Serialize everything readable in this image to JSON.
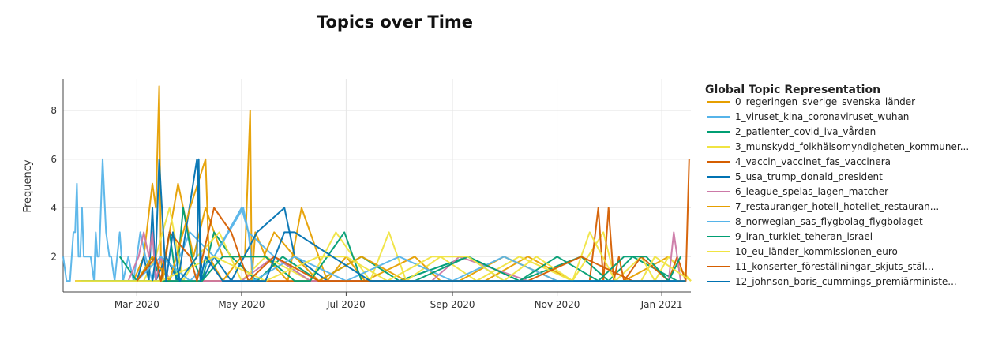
{
  "chart_data": {
    "type": "line",
    "title": "Topics over Time",
    "xlabel": "",
    "ylabel": "Frequency",
    "x_ticks": [
      "Mar 2020",
      "May 2020",
      "Jul 2020",
      "Sep 2020",
      "Nov 2020",
      "Jan 2021"
    ],
    "x_tick_dates": [
      "2020-03-01",
      "2020-05-01",
      "2020-07-01",
      "2020-09-01",
      "2020-11-01",
      "2021-01-01"
    ],
    "xlim": [
      "2020-01-18",
      "2021-01-18"
    ],
    "y_ticks": [
      2,
      4,
      6,
      8
    ],
    "ylim": [
      0.55,
      9.3
    ],
    "grid": true,
    "legend_title": "Global Topic Representation",
    "legend_position": "right",
    "series": [
      {
        "name": "0_regeringen_sverige_svenska_länder",
        "color": "#E69F00",
        "x": [
          "2020-01-27",
          "2020-02-10",
          "2020-02-20",
          "2020-02-28",
          "2020-03-05",
          "2020-03-10",
          "2020-03-12",
          "2020-03-14",
          "2020-03-15",
          "2020-03-16",
          "2020-03-20",
          "2020-03-25",
          "2020-04-03",
          "2020-04-10",
          "2020-04-20",
          "2020-05-03",
          "2020-05-06",
          "2020-05-07",
          "2020-05-09",
          "2020-05-15",
          "2020-05-28",
          "2020-06-05",
          "2020-06-20",
          "2020-07-01",
          "2020-07-12",
          "2020-08-10",
          "2020-08-25",
          "2020-09-20",
          "2020-10-15",
          "2020-11-10",
          "2020-12-10",
          "2021-01-05",
          "2021-01-18"
        ],
        "y": [
          1,
          1,
          1,
          1,
          2,
          5,
          4,
          9,
          2,
          1,
          3,
          5,
          2,
          4,
          2,
          2,
          8,
          1,
          3,
          2,
          1,
          4,
          1,
          2,
          1,
          2,
          1,
          1,
          2,
          1,
          1,
          2,
          1
        ]
      },
      {
        "name": "1_viruset_kina_coronaviruset_wuhan",
        "color": "#56B4E9",
        "x": [
          "2020-01-18",
          "2020-01-20",
          "2020-01-22",
          "2020-01-24",
          "2020-01-25",
          "2020-01-26",
          "2020-01-27",
          "2020-01-28",
          "2020-01-29",
          "2020-01-30",
          "2020-02-01",
          "2020-02-03",
          "2020-02-05",
          "2020-02-06",
          "2020-02-07",
          "2020-02-08",
          "2020-02-10",
          "2020-02-12",
          "2020-02-14",
          "2020-02-15",
          "2020-02-17",
          "2020-02-20",
          "2020-02-22",
          "2020-02-25",
          "2020-02-28",
          "2020-03-03",
          "2020-03-06",
          "2020-03-10",
          "2020-03-15",
          "2020-03-20",
          "2020-04-01",
          "2020-04-15",
          "2020-05-01",
          "2020-05-05",
          "2020-05-20",
          "2020-06-10",
          "2020-07-05",
          "2020-08-01",
          "2020-09-10",
          "2020-10-01",
          "2020-11-01",
          "2020-12-01",
          "2021-01-10"
        ],
        "y": [
          2,
          1,
          1,
          3,
          3,
          5,
          2,
          2,
          4,
          2,
          2,
          2,
          1,
          3,
          2,
          2,
          6,
          3,
          2,
          2,
          1,
          3,
          1,
          2,
          1,
          3,
          2,
          1,
          2,
          1,
          3,
          2,
          4,
          3,
          2,
          1,
          1,
          1,
          2,
          1,
          1,
          1,
          1
        ]
      },
      {
        "name": "2_patienter_covid_iva_vården",
        "color": "#009E73",
        "x": [
          "2020-02-20",
          "2020-03-01",
          "2020-03-10",
          "2020-03-15",
          "2020-03-20",
          "2020-03-24",
          "2020-03-28",
          "2020-04-02",
          "2020-04-08",
          "2020-04-15",
          "2020-04-25",
          "2020-05-10",
          "2020-05-25",
          "2020-06-15",
          "2020-07-10",
          "2020-08-01",
          "2020-09-10",
          "2020-10-10",
          "2020-11-15",
          "2020-12-01",
          "2020-12-15",
          "2021-01-10"
        ],
        "y": [
          2,
          1,
          2,
          1,
          3,
          1,
          4,
          2,
          1,
          3,
          2,
          1,
          2,
          1,
          2,
          1,
          2,
          1,
          2,
          1,
          2,
          1
        ]
      },
      {
        "name": "3_munskydd_folkhälsomyndigheten_kommuner...",
        "color": "#F0E442",
        "x": [
          "2020-03-05",
          "2020-03-12",
          "2020-03-20",
          "2020-03-28",
          "2020-04-05",
          "2020-04-18",
          "2020-05-01",
          "2020-05-15",
          "2020-06-10",
          "2020-06-25",
          "2020-07-15",
          "2020-07-26",
          "2020-08-05",
          "2020-08-25",
          "2020-09-15",
          "2020-10-10",
          "2020-11-10",
          "2020-11-28",
          "2020-12-05",
          "2020-12-20",
          "2020-12-28",
          "2021-01-05",
          "2021-01-18"
        ],
        "y": [
          1,
          2,
          4,
          1,
          2,
          3,
          1,
          2,
          1,
          3,
          1,
          3,
          1,
          2,
          1,
          2,
          1,
          3,
          1,
          2,
          1,
          2,
          1
        ]
      },
      {
        "name": "4_vaccin_vaccinet_fas_vaccinera",
        "color": "#D55E00",
        "x": [
          "2020-01-25",
          "2020-03-01",
          "2020-04-15",
          "2020-06-01",
          "2020-08-01",
          "2020-10-01",
          "2020-11-20",
          "2020-11-25",
          "2020-11-28",
          "2020-12-01",
          "2020-12-04",
          "2020-12-07",
          "2020-12-10",
          "2020-12-20",
          "2021-01-05",
          "2021-01-10",
          "2021-01-15",
          "2021-01-17"
        ],
        "y": [
          1,
          1,
          1,
          1,
          1,
          1,
          1,
          4,
          1,
          4,
          1,
          2,
          1,
          2,
          1,
          2,
          1,
          6
        ]
      },
      {
        "name": "5_usa_trump_donald_president",
        "color": "#0072B2",
        "x": [
          "2020-03-01",
          "2020-03-05",
          "2020-03-08",
          "2020-03-10",
          "2020-03-12",
          "2020-03-18",
          "2020-03-25",
          "2020-04-05",
          "2020-04-08",
          "2020-04-15",
          "2020-04-25",
          "2020-05-10",
          "2020-05-26",
          "2020-06-01",
          "2020-06-20",
          "2020-07-01",
          "2020-07-15",
          "2020-08-15",
          "2020-09-15",
          "2020-10-20",
          "2020-12-01",
          "2021-01-10"
        ],
        "y": [
          1,
          2,
          1,
          4,
          1,
          2,
          1,
          6,
          1,
          2,
          1,
          3,
          4,
          2,
          1,
          1,
          1,
          1,
          1,
          1,
          1,
          1
        ]
      },
      {
        "name": "6_league_spelas_lagen_matcher",
        "color": "#CC79A7",
        "x": [
          "2020-02-25",
          "2020-03-02",
          "2020-03-05",
          "2020-03-08",
          "2020-03-10",
          "2020-03-12",
          "2020-03-15",
          "2020-03-20",
          "2020-04-01",
          "2020-05-01",
          "2020-05-20",
          "2020-06-10",
          "2020-08-20",
          "2020-09-05",
          "2020-10-15",
          "2020-11-15",
          "2020-12-15",
          "2021-01-05",
          "2021-01-08",
          "2021-01-12"
        ],
        "y": [
          1,
          2,
          3,
          2,
          3,
          1,
          2,
          1,
          1,
          1,
          2,
          1,
          1,
          2,
          1,
          1,
          1,
          1,
          3,
          1
        ]
      },
      {
        "name": "7_restauranger_hotell_hotellet_restauran...",
        "color": "#E69F00",
        "x": [
          "2020-02-15",
          "2020-03-01",
          "2020-03-10",
          "2020-03-20",
          "2020-04-01",
          "2020-04-10",
          "2020-04-12",
          "2020-04-20",
          "2020-05-01",
          "2020-05-14",
          "2020-05-20",
          "2020-06-01",
          "2020-06-15",
          "2020-07-10",
          "2020-08-05",
          "2020-09-05",
          "2020-10-01",
          "2020-11-01",
          "2020-12-01",
          "2021-01-15"
        ],
        "y": [
          1,
          1,
          2,
          1,
          4,
          6,
          2,
          1,
          2,
          2,
          3,
          2,
          1,
          2,
          1,
          1,
          2,
          1,
          1,
          1
        ]
      },
      {
        "name": "8_norwegian_sas_flygbolag_flygbolaget",
        "color": "#56B4E9",
        "x": [
          "2020-02-05",
          "2020-03-01",
          "2020-03-15",
          "2020-04-01",
          "2020-04-15",
          "2020-05-02",
          "2020-05-05",
          "2020-05-08",
          "2020-06-01",
          "2020-07-01",
          "2020-08-01",
          "2020-09-01",
          "2020-10-01",
          "2020-11-01",
          "2020-12-01",
          "2021-01-10"
        ],
        "y": [
          1,
          1,
          2,
          1,
          2,
          4,
          3,
          1,
          2,
          1,
          2,
          1,
          2,
          1,
          1,
          1
        ]
      },
      {
        "name": "9_iran_turkiet_teheran_israel",
        "color": "#009E73",
        "x": [
          "2020-01-28",
          "2020-03-01",
          "2020-03-18",
          "2020-04-08",
          "2020-04-20",
          "2020-05-15",
          "2020-06-01",
          "2020-06-10",
          "2020-06-20",
          "2020-06-30",
          "2020-07-10",
          "2020-08-10",
          "2020-09-10",
          "2020-10-10",
          "2020-11-01",
          "2020-11-25",
          "2020-12-10",
          "2020-12-23",
          "2021-01-05",
          "2021-01-12"
        ],
        "y": [
          1,
          1,
          1,
          1,
          2,
          2,
          1,
          1,
          2,
          3,
          1,
          1,
          2,
          1,
          2,
          1,
          2,
          2,
          1,
          2
        ]
      },
      {
        "name": "10_eu_länder_kommissionen_euro",
        "color": "#F0E442",
        "x": [
          "2020-01-25",
          "2020-02-25",
          "2020-03-15",
          "2020-04-15",
          "2020-05-15",
          "2020-06-15",
          "2020-07-01",
          "2020-07-25",
          "2020-08-20",
          "2020-09-10",
          "2020-10-01",
          "2020-10-20",
          "2020-11-10",
          "2020-11-20",
          "2020-12-05",
          "2020-12-20",
          "2020-12-28",
          "2021-01-18"
        ],
        "y": [
          1,
          1,
          1,
          2,
          1,
          2,
          2,
          1,
          2,
          2,
          1,
          2,
          1,
          3,
          1,
          1,
          2,
          1
        ]
      },
      {
        "name": "11_konserter_föreställningar_skjuts_stäl...",
        "color": "#D55E00",
        "x": [
          "2020-03-01",
          "2020-03-12",
          "2020-03-15",
          "2020-03-20",
          "2020-04-01",
          "2020-04-05",
          "2020-04-15",
          "2020-04-25",
          "2020-05-05",
          "2020-05-20",
          "2020-06-15",
          "2020-07-15",
          "2020-08-15",
          "2020-09-15",
          "2020-10-15",
          "2020-11-15",
          "2020-12-15",
          "2021-01-05"
        ],
        "y": [
          1,
          2,
          1,
          3,
          2,
          1,
          4,
          3,
          1,
          2,
          1,
          1,
          1,
          1,
          1,
          2,
          1,
          1
        ]
      },
      {
        "name": "12_johnson_boris_cummings_premiärministe...",
        "color": "#0072B2",
        "x": [
          "2020-03-10",
          "2020-03-12",
          "2020-03-14",
          "2020-03-18",
          "2020-03-22",
          "2020-03-26",
          "2020-04-05",
          "2020-04-06",
          "2020-04-07",
          "2020-04-10",
          "2020-04-20",
          "2020-05-01",
          "2020-05-15",
          "2020-05-26",
          "2020-06-01",
          "2020-07-15",
          "2020-08-15",
          "2020-10-01",
          "2020-11-15",
          "2020-12-15",
          "2021-01-15"
        ],
        "y": [
          1,
          2,
          6,
          1,
          3,
          1,
          2,
          6,
          1,
          2,
          1,
          1,
          1,
          3,
          3,
          1,
          1,
          1,
          1,
          1,
          1
        ]
      }
    ]
  }
}
